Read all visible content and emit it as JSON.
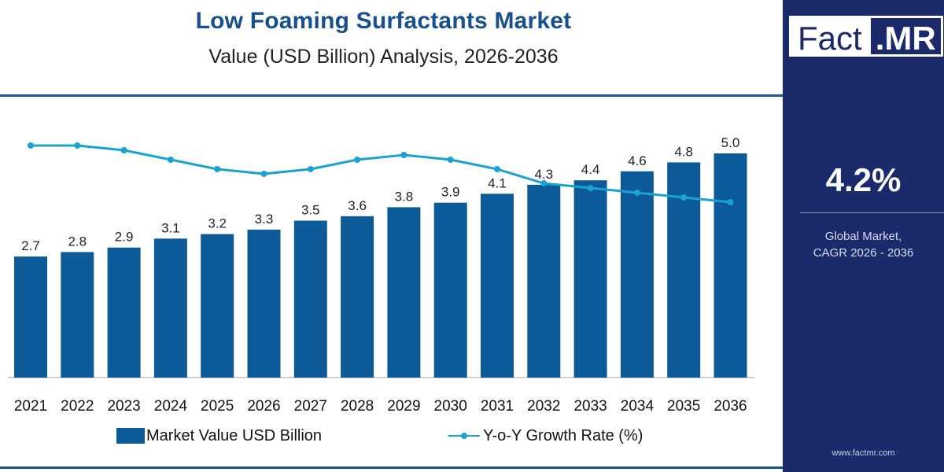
{
  "title": "Low Foaming Surfactants Market",
  "subtitle": "Value (USD Billion) Analysis, 2026-2036",
  "legend": {
    "bar_label": "Market Value USD Billion",
    "line_label": "Y-o-Y Growth Rate (%)"
  },
  "sidebar": {
    "logo_left": "Fact",
    "logo_right": ".MR",
    "cagr_value": "4.2%",
    "cagr_label_line1": "Global Market,",
    "cagr_label_line2": "CAGR 2026 - 2036",
    "website": "www.factmr.com"
  },
  "colors": {
    "bar": "#0d5a99",
    "line": "#1aa3d1",
    "title": "#18508f",
    "sidebar": "#1a2a6b"
  },
  "chart_data": {
    "type": "bar",
    "categories": [
      "2021",
      "2022",
      "2023",
      "2024",
      "2025",
      "2026",
      "2027",
      "2028",
      "2029",
      "2030",
      "2031",
      "2032",
      "2033",
      "2034",
      "2035",
      "2036"
    ],
    "series": [
      {
        "name": "Market Value USD Billion",
        "type": "bar",
        "values": [
          2.7,
          2.8,
          2.9,
          3.1,
          3.2,
          3.3,
          3.5,
          3.6,
          3.8,
          3.9,
          4.1,
          4.3,
          4.4,
          4.6,
          4.8,
          5.0
        ],
        "labels": [
          "2.7",
          "2.8",
          "2.9",
          "3.1",
          "3.2",
          "3.3",
          "3.5",
          "3.6",
          "3.8",
          "3.9",
          "4.1",
          "4.3",
          "4.4",
          "4.6",
          "4.8",
          "5.0"
        ]
      },
      {
        "name": "Y-o-Y Growth Rate (%)",
        "type": "line",
        "values": [
          4.7,
          4.7,
          4.6,
          4.4,
          4.2,
          4.1,
          4.2,
          4.4,
          4.5,
          4.4,
          4.2,
          3.9,
          3.8,
          3.7,
          3.6,
          3.5
        ]
      }
    ],
    "ylim": [
      0,
      5.7
    ],
    "grid": false,
    "legend_position": "bottom"
  }
}
